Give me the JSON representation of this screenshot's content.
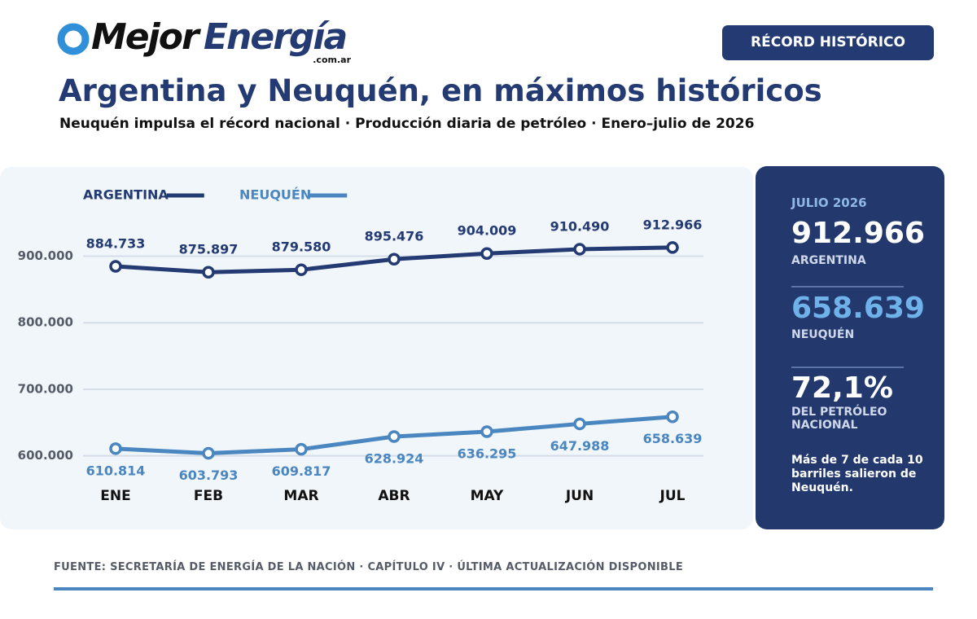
{
  "logo": {
    "first": "Mejor",
    "second": "Energía",
    "domain": ".com.ar"
  },
  "badge": "RÉCORD HISTÓRICO",
  "chart_data": {
    "type": "line",
    "title": "Argentina y Neuquén, en máximos históricos",
    "subtitle": "Neuquén impulsa el récord nacional · Producción diaria de petróleo · Enero–julio de 2026",
    "categories": [
      "ENE",
      "FEB",
      "MAR",
      "ABR",
      "MAY",
      "JUN",
      "JUL"
    ],
    "series": [
      {
        "name": "ARGENTINA",
        "color": "#233a72",
        "values": [
          884733,
          875897,
          879580,
          895476,
          904009,
          910490,
          912966
        ],
        "value_labels": [
          "884.733",
          "875.897",
          "879.580",
          "895.476",
          "904.009",
          "910.490",
          "912.966"
        ]
      },
      {
        "name": "NEUQUÉN",
        "color": "#4a86c0",
        "values": [
          610814,
          603793,
          609817,
          628924,
          636295,
          647988,
          658639
        ],
        "value_labels": [
          "610.814",
          "603.793",
          "609.817",
          "628.924",
          "636.295",
          "647.988",
          "658.639"
        ]
      }
    ],
    "ylim": [
      580000,
      930000
    ],
    "yticks": [
      {
        "value": 600000,
        "label": "600.000"
      },
      {
        "value": 700000,
        "label": "700.000"
      },
      {
        "value": 800000,
        "label": "800.000"
      },
      {
        "value": 900000,
        "label": "900.000"
      }
    ],
    "grid": true,
    "legend": "top-left"
  },
  "panel": {
    "period": "JULIO 2026",
    "argentina_value": "912.966",
    "argentina_label": "ARGENTINA",
    "neuquen_value": "658.639",
    "neuquen_label": "NEUQUÉN",
    "share_value": "72,1%",
    "share_label": "DEL PETRÓLEO NACIONAL",
    "note": "Más de 7 de cada 10 barriles salieron de Neuquén."
  },
  "footer": "FUENTE: SECRETARÍA DE ENERGÍA DE LA NACIÓN · CAPÍTULO IV · ÚLTIMA ACTUALIZACIÓN DISPONIBLE"
}
